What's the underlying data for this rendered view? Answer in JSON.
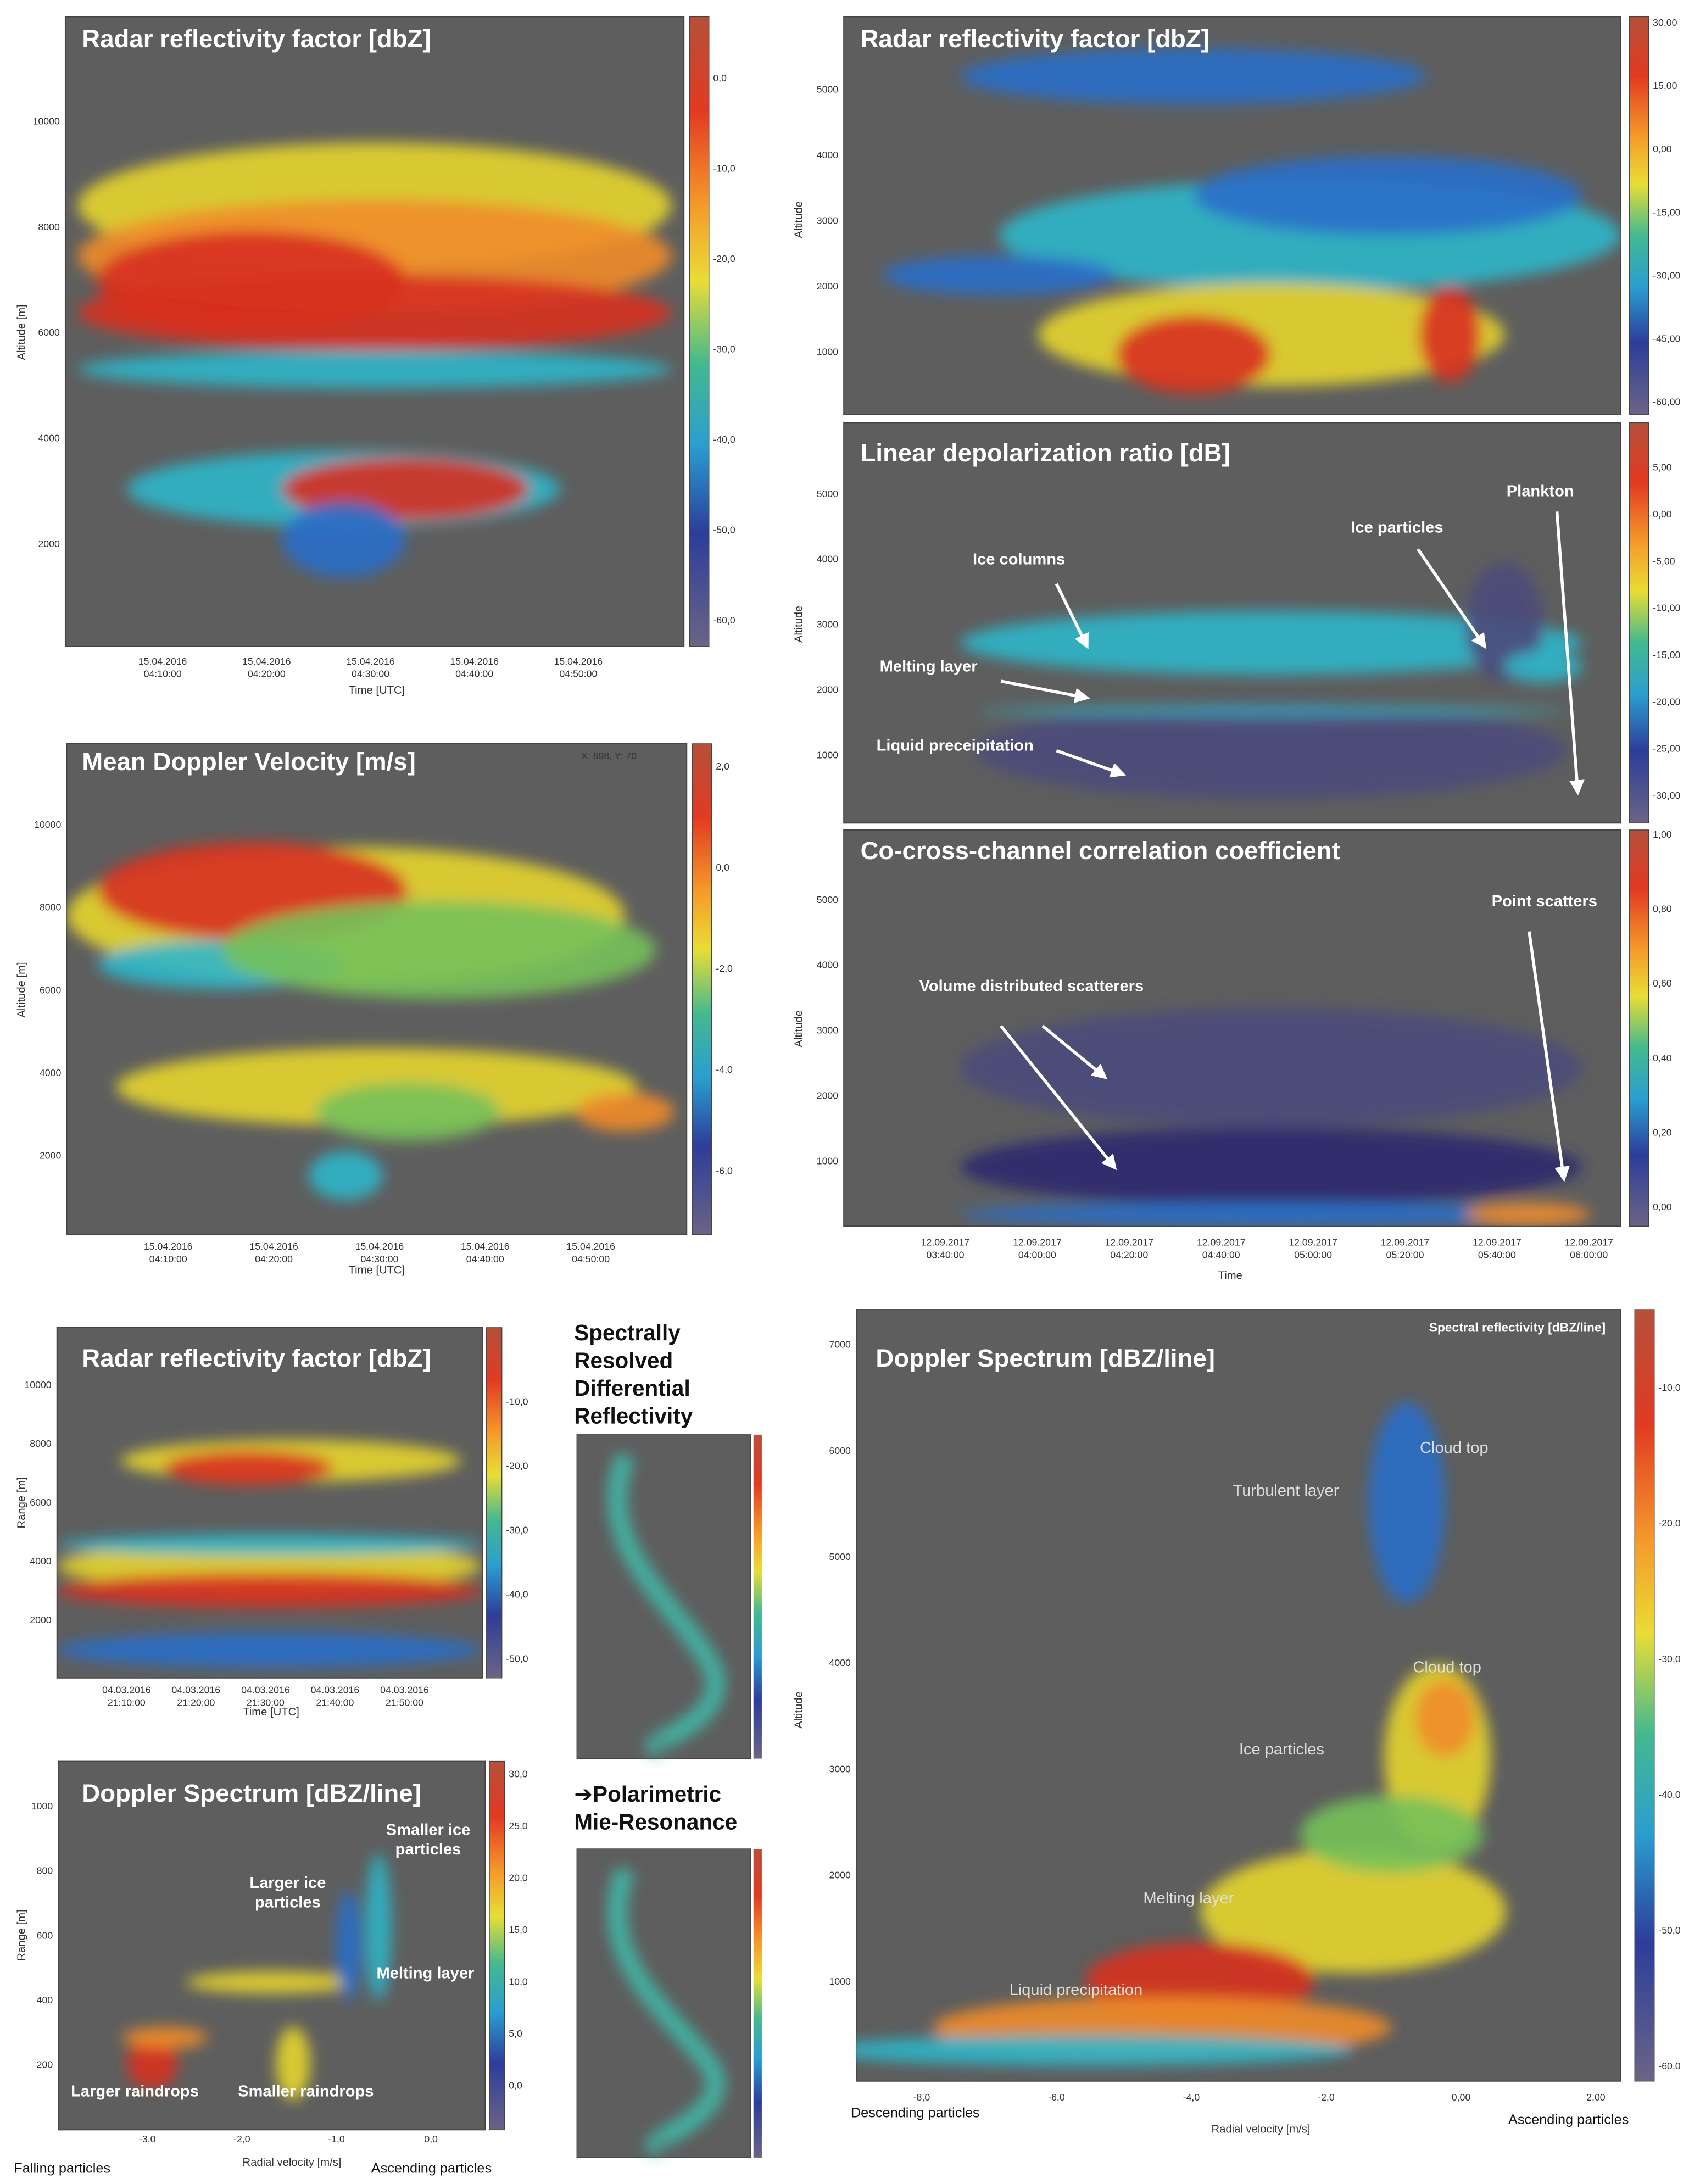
{
  "panels": [
    {
      "title": "Radar reflectivity factor [dbZ]",
      "y_label": "Altitude [m]",
      "x_label": "Time [UTC]",
      "yticks": [
        "10000",
        "8000",
        "6000",
        "4000",
        "2000"
      ],
      "colorbar_ticks": [
        "0,0",
        "-10,0",
        "-20,0",
        "-30,0",
        "-40,0",
        "-50,0",
        "-60,0"
      ],
      "xticks": [
        {
          "date": "15.04.2016",
          "time": "04:10:00"
        },
        {
          "date": "15.04.2016",
          "time": "04:20:00"
        },
        {
          "date": "15.04.2016",
          "time": "04:30:00"
        },
        {
          "date": "15.04.2016",
          "time": "04:40:00"
        },
        {
          "date": "15.04.2016",
          "time": "04:50:00"
        }
      ]
    },
    {
      "title": "Mean Doppler Velocity [m/s]",
      "y_label": "Altitude [m]",
      "x_label": "Time [UTC]",
      "note": "X: 698, Y: 70",
      "yticks": [
        "10000",
        "8000",
        "6000",
        "4000",
        "2000"
      ],
      "colorbar_ticks": [
        "2,0",
        "0,0",
        "-2,0",
        "-4,0",
        "-6,0"
      ],
      "xticks": [
        {
          "date": "15.04.2016",
          "time": "04:10:00"
        },
        {
          "date": "15.04.2016",
          "time": "04:20:00"
        },
        {
          "date": "15.04.2016",
          "time": "04:30:00"
        },
        {
          "date": "15.04.2016",
          "time": "04:40:00"
        },
        {
          "date": "15.04.2016",
          "time": "04:50:00"
        }
      ]
    },
    {
      "title": "Radar reflectivity factor [dbZ]",
      "y_label": "Altitude",
      "yticks": [
        "5000",
        "4000",
        "3000",
        "2000",
        "1000"
      ],
      "colorbar_ticks": [
        "30,00",
        "15,00",
        "0,00",
        "-15,00",
        "-30,00",
        "-45,00",
        "-60,00"
      ]
    },
    {
      "title": "Linear depolarization ratio [dB]",
      "y_label": "Altitude",
      "yticks": [
        "5000",
        "4000",
        "3000",
        "2000",
        "1000"
      ],
      "colorbar_ticks": [
        "5,00",
        "0,00",
        "-5,00",
        "-10,00",
        "-15,00",
        "-20,00",
        "-25,00",
        "-30,00"
      ],
      "annotations": [
        [
          "Plankton"
        ],
        [
          "Ice particles"
        ],
        [
          "Ice columns"
        ],
        [
          "Melting layer"
        ],
        [
          "Liquid preceipitation"
        ]
      ]
    },
    {
      "title": "Co-cross-channel correlation coefficient",
      "y_label": "Altitude",
      "x_label": "Time",
      "yticks": [
        "5000",
        "4000",
        "3000",
        "2000",
        "1000"
      ],
      "colorbar_ticks": [
        "1,00",
        "0,80",
        "0,60",
        "0,40",
        "0,20",
        "0,00"
      ],
      "xticks": [
        {
          "date": "12.09.2017",
          "time": "03:40:00"
        },
        {
          "date": "12.09.2017",
          "time": "04:00:00"
        },
        {
          "date": "12.09.2017",
          "time": "04:20:00"
        },
        {
          "date": "12.09.2017",
          "time": "04:40:00"
        },
        {
          "date": "12.09.2017",
          "time": "05:00:00"
        },
        {
          "date": "12.09.2017",
          "time": "05:20:00"
        },
        {
          "date": "12.09.2017",
          "time": "05:40:00"
        },
        {
          "date": "12.09.2017",
          "time": "06:00:00"
        }
      ],
      "annotations": [
        [
          "Point scatters"
        ],
        [
          "Volume distributed scatterers"
        ]
      ]
    },
    {
      "title": "Radar reflectivity factor [dbZ]",
      "y_label": "Range [m]",
      "x_label": "Time [UTC]",
      "yticks": [
        "10000",
        "8000",
        "6000",
        "4000",
        "2000"
      ],
      "colorbar_ticks": [
        "-10,0",
        "-20,0",
        "-30,0",
        "-40,0",
        "-50,0"
      ],
      "xticks": [
        {
          "date": "04.03.2016",
          "time": "21:10:00"
        },
        {
          "date": "04.03.2016",
          "time": "21:20:00"
        },
        {
          "date": "04.03.2016",
          "time": "21:30:00"
        },
        {
          "date": "04.03.2016",
          "time": "21:40:00"
        },
        {
          "date": "04.03.2016",
          "time": "21:50:00"
        }
      ]
    },
    {
      "title": "Doppler Spectrum [dBZ/line]",
      "y_label": "Range [m]",
      "x_label": "Radial velocity [m/s]",
      "yticks": [
        "1000",
        "800",
        "600",
        "400",
        "200"
      ],
      "colorbar_ticks": [
        "30,0",
        "25,0",
        "20,0",
        "15,0",
        "10,0",
        "5,0",
        "0,0"
      ],
      "xticks": [
        {
          "time": "-3,0"
        },
        {
          "time": "-2,0"
        },
        {
          "time": "-1,0"
        },
        {
          "time": "0,0"
        }
      ],
      "annotations": [
        [
          "Smaller ice",
          "particles"
        ],
        [
          "Larger ice",
          "particles"
        ],
        [
          "Melting layer"
        ],
        [
          "Larger raindrops"
        ],
        [
          "Smaller raindrops"
        ]
      ],
      "footer": [
        "Falling particles",
        "Ascending particles"
      ]
    },
    {
      "title": "Doppler Spectrum [dBZ/line]",
      "y_label": "Altitude",
      "x_label": "Radial velocity [m/s]",
      "note": "Spectral reflectivity [dBZ/line]",
      "yticks": [
        "7000",
        "6000",
        "5000",
        "4000",
        "3000",
        "2000",
        "1000"
      ],
      "colorbar_ticks": [
        "-10,0",
        "-20,0",
        "-30,0",
        "-40,0",
        "-50,0",
        "-60,0"
      ],
      "xticks": [
        {
          "time": "-8,0"
        },
        {
          "time": "-6,0"
        },
        {
          "time": "-4,0"
        },
        {
          "time": "-2,0"
        },
        {
          "time": "0,00"
        },
        {
          "time": "2,00"
        }
      ],
      "annotations": [
        [
          "Cloud top"
        ],
        [
          "Turbulent layer"
        ],
        [
          "Cloud top"
        ],
        [
          "Ice particles"
        ],
        [
          "Melting layer"
        ],
        [
          "Liquid precipitation"
        ]
      ],
      "footer": [
        "Descending particles",
        "Ascending particles"
      ]
    }
  ],
  "middle": {
    "heading": [
      "Spectrally",
      "Resolved",
      "Differential",
      "Reflectivity"
    ],
    "subheading": [
      "➔Polarimetric",
      "Mie-Resonance"
    ]
  }
}
